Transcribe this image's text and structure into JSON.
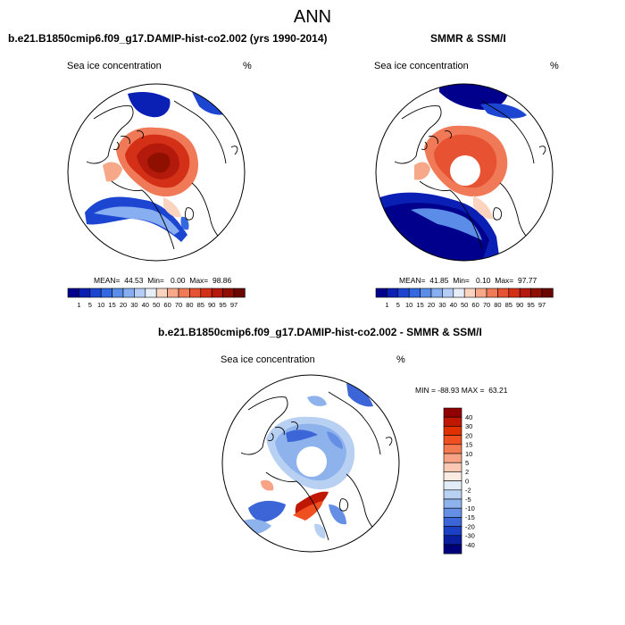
{
  "title": "ANN",
  "panels": {
    "model": {
      "title": "b.e21.B1850cmip6.f09_g17.DAMIP-hist-co2.002 (yrs 1990-2014)",
      "variable": "Sea ice concentration",
      "units": "%",
      "stats": "MEAN=  44.53  Min=   0.00  Max=  98.86"
    },
    "obs": {
      "title": "SMMR & SSM/I",
      "variable": "Sea ice concentration",
      "units": "%",
      "stats": "MEAN=  41.85  Min=   0.10  Max=  97.77"
    },
    "diff": {
      "title": "b.e21.B1850cmip6.f09_g17.DAMIP-hist-co2.002 - SMMR & SSM/I",
      "variable": "Sea ice concentration",
      "units": "%",
      "stats": "MIN = -88.93 MAX =  63.21"
    }
  },
  "chart_data": [
    {
      "type": "heatmap",
      "projection": "north polar stereographic",
      "title": "b.e21.B1850cmip6.f09_g17.DAMIP-hist-co2.002 (yrs 1990-2014)",
      "variable": "Sea ice concentration",
      "units": "%",
      "mean": 44.53,
      "min": 0.0,
      "max": 98.86,
      "colorbar_labels": [
        "1",
        "5",
        "10",
        "15",
        "20",
        "30",
        "40",
        "50",
        "60",
        "70",
        "80",
        "85",
        "90",
        "95",
        "97"
      ],
      "colorbar_colors": [
        "#00008c",
        "#0a1fb4",
        "#1c46d2",
        "#3468e0",
        "#5a8ce8",
        "#86aef0",
        "#b4ccf6",
        "#e6eef8",
        "#fbd4c0",
        "#f6a888",
        "#f07a58",
        "#e65232",
        "#d43018",
        "#b41a0c",
        "#901000",
        "#6a0600"
      ]
    },
    {
      "type": "heatmap",
      "projection": "north polar stereographic",
      "title": "SMMR & SSM/I",
      "variable": "Sea ice concentration",
      "units": "%",
      "mean": 41.85,
      "min": 0.1,
      "max": 97.77,
      "colorbar_labels": [
        "1",
        "5",
        "10",
        "15",
        "20",
        "30",
        "40",
        "50",
        "60",
        "70",
        "80",
        "85",
        "90",
        "95",
        "97"
      ],
      "colorbar_colors": [
        "#00008c",
        "#0a1fb4",
        "#1c46d2",
        "#3468e0",
        "#5a8ce8",
        "#86aef0",
        "#b4ccf6",
        "#e6eef8",
        "#fbd4c0",
        "#f6a888",
        "#f07a58",
        "#e65232",
        "#d43018",
        "#b41a0c",
        "#901000",
        "#6a0600"
      ]
    },
    {
      "type": "heatmap",
      "projection": "north polar stereographic",
      "title": "b.e21.B1850cmip6.f09_g17.DAMIP-hist-co2.002 - SMMR & SSM/I",
      "variable": "Sea ice concentration",
      "units": "%",
      "min": -88.93,
      "max": 63.21,
      "colorbar_labels": [
        "40",
        "30",
        "20",
        "15",
        "10",
        "5",
        "2",
        "0",
        "-2",
        "-5",
        "-10",
        "-15",
        "-20",
        "-30",
        "-40"
      ],
      "colorbar_colors": [
        "#900000",
        "#c01800",
        "#e03000",
        "#f05020",
        "#f47a52",
        "#f8a286",
        "#fbc8b4",
        "#fcebe2",
        "#e2ecf8",
        "#b8d0f2",
        "#8eb2ec",
        "#648fe4",
        "#3c66d8",
        "#1c40c4",
        "#0a1ea0",
        "#00007a"
      ]
    }
  ]
}
